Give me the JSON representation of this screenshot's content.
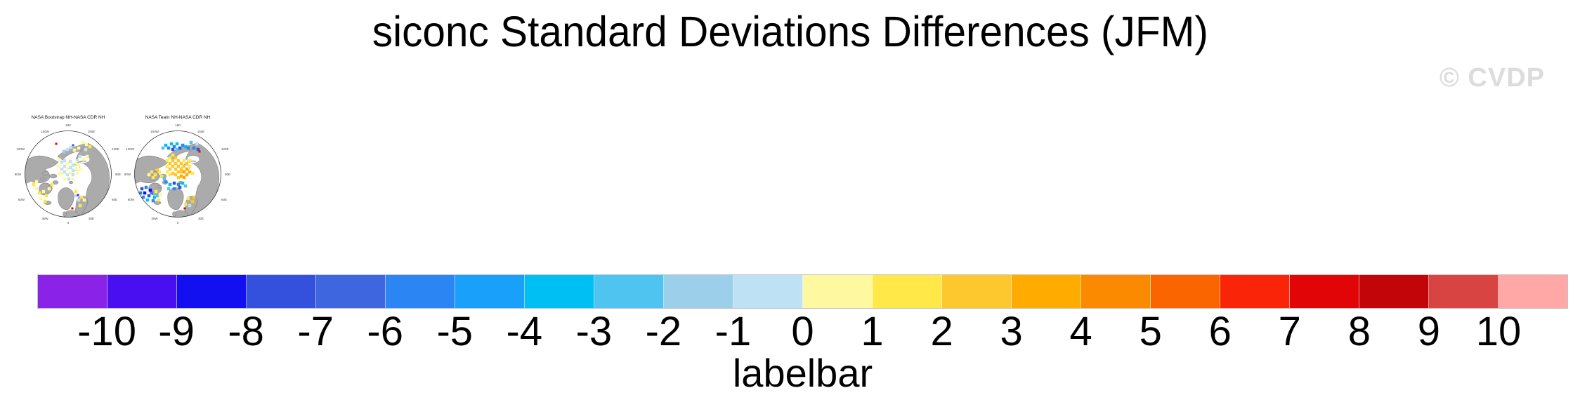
{
  "page": {
    "background": "#ffffff"
  },
  "header": {
    "title": "siconc Standard Deviations Differences (JFM)"
  },
  "watermark": {
    "text": "© CVDP",
    "color": "#dcdcdc"
  },
  "maps": [
    {
      "title": "NASA Bootstrap NH-NASA CDR NH",
      "lon_labels": [
        "180",
        "150W",
        "150E",
        "120W",
        "120E",
        "90W",
        "90E",
        "60W",
        "60E",
        "30W",
        "30E",
        "0"
      ],
      "cells": [
        [
          62,
          28,
          10
        ],
        [
          67,
          25,
          10
        ],
        [
          72,
          29,
          11
        ],
        [
          78,
          26,
          11
        ],
        [
          84,
          18,
          11
        ],
        [
          89,
          21,
          11
        ],
        [
          94,
          24,
          12
        ],
        [
          88,
          28,
          10
        ],
        [
          57,
          31,
          9
        ],
        [
          46,
          20,
          18,
          3
        ],
        [
          70,
          22,
          3,
          3
        ],
        [
          80,
          38,
          10
        ],
        [
          85,
          42,
          11
        ],
        [
          90,
          38,
          11
        ],
        [
          76,
          44,
          10
        ],
        [
          50,
          42,
          11
        ],
        [
          54,
          46,
          10
        ],
        [
          58,
          44,
          10
        ],
        [
          62,
          48,
          11
        ],
        [
          66,
          45,
          10
        ],
        [
          70,
          50,
          10
        ],
        [
          74,
          47,
          11
        ],
        [
          78,
          50,
          11
        ],
        [
          50,
          52,
          11
        ],
        [
          54,
          56,
          10
        ],
        [
          58,
          52,
          10
        ],
        [
          62,
          56,
          11
        ],
        [
          66,
          54,
          10
        ],
        [
          70,
          58,
          10
        ],
        [
          74,
          55,
          11
        ],
        [
          80,
          56,
          11
        ],
        [
          54,
          62,
          11
        ],
        [
          58,
          60,
          10
        ],
        [
          62,
          64,
          10
        ],
        [
          66,
          62,
          11
        ],
        [
          70,
          64,
          10
        ],
        [
          76,
          62,
          11
        ],
        [
          50,
          62,
          11
        ],
        [
          58,
          70,
          11
        ],
        [
          64,
          70,
          10
        ],
        [
          70,
          70,
          11
        ],
        [
          14,
          78,
          12
        ],
        [
          18,
          84,
          11
        ],
        [
          22,
          90,
          12
        ],
        [
          28,
          88,
          11
        ],
        [
          32,
          94,
          12
        ],
        [
          24,
          98,
          11
        ],
        [
          36,
          84,
          11
        ],
        [
          18,
          74,
          11
        ],
        [
          40,
          78,
          12
        ],
        [
          30,
          102,
          12
        ],
        [
          74,
          94,
          10
        ],
        [
          78,
          100,
          10
        ],
        [
          82,
          96,
          12
        ],
        [
          80,
          108,
          12
        ],
        [
          74,
          88,
          12
        ],
        [
          86,
          100,
          11
        ],
        [
          77,
          93,
          1,
          3
        ],
        [
          69,
          112,
          18,
          3
        ]
      ]
    },
    {
      "title": "NASA Team NH-NASA CDR NH",
      "lon_labels": [
        "180",
        "150W",
        "150E",
        "120W",
        "120E",
        "90W",
        "90E",
        "60W",
        "60E",
        "30W",
        "30E",
        "0"
      ],
      "cells": [
        [
          42,
          26,
          8
        ],
        [
          46,
          22,
          7
        ],
        [
          50,
          26,
          5
        ],
        [
          54,
          20,
          7
        ],
        [
          58,
          24,
          5
        ],
        [
          62,
          20,
          7
        ],
        [
          66,
          26,
          3
        ],
        [
          70,
          22,
          5
        ],
        [
          74,
          24,
          7
        ],
        [
          78,
          26,
          5
        ],
        [
          82,
          18,
          8
        ],
        [
          86,
          26,
          5
        ],
        [
          90,
          20,
          10
        ],
        [
          92,
          28,
          3
        ],
        [
          56,
          28,
          3
        ],
        [
          62,
          28,
          8
        ],
        [
          94,
          31,
          18,
          3
        ],
        [
          52,
          40,
          12
        ],
        [
          56,
          36,
          12
        ],
        [
          56,
          44,
          13
        ],
        [
          60,
          40,
          13
        ],
        [
          60,
          48,
          13
        ],
        [
          64,
          44,
          13
        ],
        [
          64,
          52,
          13
        ],
        [
          68,
          48,
          13
        ],
        [
          68,
          56,
          13
        ],
        [
          72,
          52,
          13
        ],
        [
          72,
          44,
          12
        ],
        [
          76,
          48,
          13
        ],
        [
          76,
          56,
          14
        ],
        [
          80,
          52,
          12
        ],
        [
          48,
          44,
          12
        ],
        [
          48,
          52,
          12
        ],
        [
          52,
          48,
          13
        ],
        [
          52,
          56,
          13
        ],
        [
          56,
          52,
          13
        ],
        [
          60,
          56,
          13
        ],
        [
          64,
          60,
          13
        ],
        [
          68,
          60,
          13
        ],
        [
          72,
          60,
          14
        ],
        [
          76,
          64,
          14
        ],
        [
          80,
          60,
          14
        ],
        [
          84,
          62,
          12
        ],
        [
          48,
          60,
          12
        ],
        [
          52,
          64,
          12
        ],
        [
          56,
          62,
          13
        ],
        [
          60,
          64,
          13
        ],
        [
          64,
          68,
          13
        ],
        [
          68,
          66,
          14
        ],
        [
          72,
          68,
          14
        ],
        [
          80,
          44,
          12
        ],
        [
          26,
          60,
          12
        ],
        [
          31,
          64,
          12
        ],
        [
          37,
          60,
          12
        ],
        [
          28,
          68,
          12
        ],
        [
          40,
          66,
          12
        ],
        [
          34,
          57,
          13
        ],
        [
          22,
          64,
          11
        ],
        [
          46,
          74,
          5
        ],
        [
          52,
          78,
          7
        ],
        [
          58,
          76,
          3
        ],
        [
          64,
          78,
          5
        ],
        [
          70,
          76,
          7
        ],
        [
          58,
          84,
          5
        ],
        [
          66,
          82,
          3
        ],
        [
          50,
          84,
          8
        ],
        [
          74,
          80,
          8
        ],
        [
          44,
          70,
          8
        ],
        [
          12,
          84,
          3
        ],
        [
          16,
          90,
          2
        ],
        [
          22,
          94,
          3
        ],
        [
          18,
          82,
          5
        ],
        [
          26,
          90,
          5
        ],
        [
          30,
          96,
          7
        ],
        [
          14,
          96,
          5
        ],
        [
          24,
          86,
          2
        ],
        [
          34,
          94,
          8
        ],
        [
          20,
          100,
          7
        ],
        [
          28,
          101,
          5
        ],
        [
          36,
          100,
          12
        ],
        [
          32,
          88,
          12
        ],
        [
          10,
          90,
          5
        ],
        [
          38,
          92,
          11
        ],
        [
          78,
          98,
          12
        ],
        [
          84,
          102,
          13
        ],
        [
          74,
          106,
          12
        ],
        [
          80,
          108,
          10
        ],
        [
          86,
          96,
          13
        ],
        [
          73,
          112,
          18,
          3
        ]
      ]
    }
  ],
  "colorbar": {
    "label": "labelbar",
    "ticks": [
      "-10",
      "-9",
      "-8",
      "-7",
      "-6",
      "-5",
      "-4",
      "-3",
      "-2",
      "-1",
      "0",
      "1",
      "2",
      "3",
      "4",
      "5",
      "6",
      "7",
      "8",
      "9",
      "10"
    ],
    "colors": [
      "#8B22E8",
      "#4A0FF0",
      "#1210F0",
      "#3351DC",
      "#3E66DE",
      "#2B85F2",
      "#18A0FA",
      "#00BFF2",
      "#4FC4F0",
      "#9CD0EA",
      "#BFE1F4",
      "#FEF9A0",
      "#FFE847",
      "#FCC82D",
      "#FFAB00",
      "#FC8A00",
      "#FB6500",
      "#FA2409",
      "#E20508",
      "#C10508",
      "#D84441",
      "#FFA8A5"
    ],
    "land_color": "#ababab",
    "coast_color": "#6e6e6e",
    "border_color": "#c3c3c3"
  },
  "chart_data": {
    "type": "heatmap",
    "title": "siconc Standard Deviations Differences (JFM)",
    "variable": "siconc",
    "season": "JFM",
    "panels": [
      "NASA Bootstrap NH-NASA CDR NH",
      "NASA Team NH-NASA CDR NH"
    ],
    "projection": "north-polar-stereographic",
    "colorbar_label": "labelbar",
    "levels": [
      -10,
      -9,
      -8,
      -7,
      -6,
      -5,
      -4,
      -3,
      -2,
      -1,
      0,
      1,
      2,
      3,
      4,
      5,
      6,
      7,
      8,
      9,
      10
    ],
    "colors": [
      "#8B22E8",
      "#4A0FF0",
      "#1210F0",
      "#3351DC",
      "#3E66DE",
      "#2B85F2",
      "#18A0FA",
      "#00BFF2",
      "#4FC4F0",
      "#9CD0EA",
      "#BFE1F4",
      "#FEF9A0",
      "#FFE847",
      "#FCC82D",
      "#FFAB00",
      "#FC8A00",
      "#FB6500",
      "#FA2409",
      "#E20508",
      "#C10508",
      "#D84441",
      "#FFA8A5"
    ],
    "legend_position": "bottom"
  }
}
